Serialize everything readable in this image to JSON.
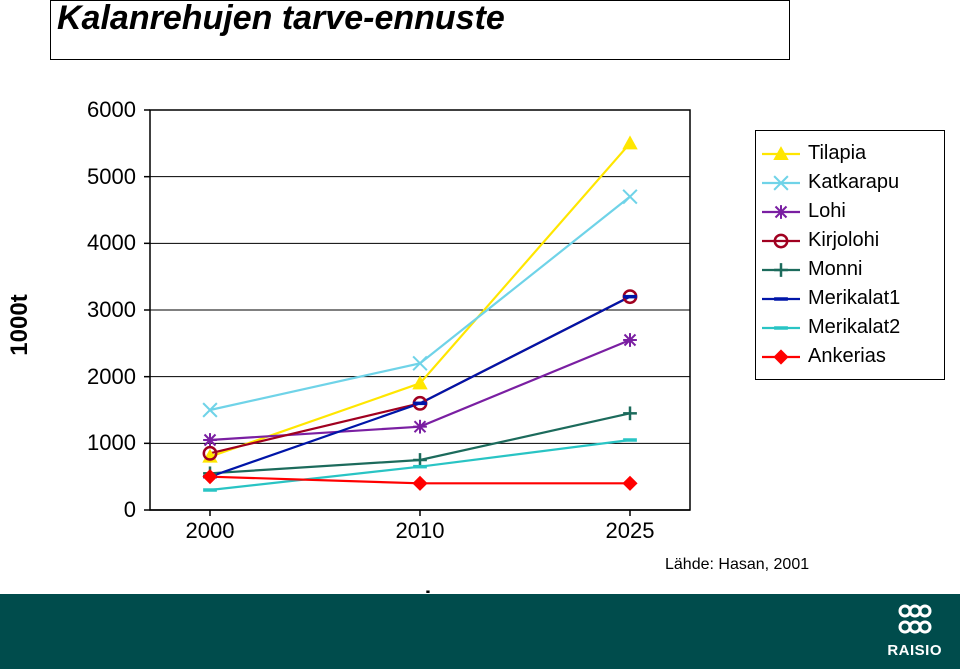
{
  "title": "Kalanrehujen tarve-ennuste",
  "chart": {
    "type": "line",
    "ylabel": "1000t",
    "xlabel": "vuosi",
    "ylim": [
      0,
      6000
    ],
    "ytick_step": 1000,
    "yticks": [
      0,
      1000,
      2000,
      3000,
      4000,
      5000,
      6000
    ],
    "x_categories": [
      "2000",
      "2010",
      "2025"
    ],
    "background_color": "#ffffff",
    "grid_color": "#000000",
    "axis_color": "#000000",
    "tick_fontsize": 22,
    "label_fontsize": 24,
    "series": [
      {
        "name": "Tilapia",
        "color": "#ffe600",
        "marker": "triangle",
        "values": [
          800,
          1900,
          5500
        ]
      },
      {
        "name": "Katkarapu",
        "color": "#6fd3e8",
        "marker": "x",
        "values": [
          1500,
          2200,
          4700
        ]
      },
      {
        "name": "Lohi",
        "color": "#7a1fa2",
        "marker": "star",
        "values": [
          1050,
          1250,
          2550
        ]
      },
      {
        "name": "Kirjolohi",
        "color": "#a00020",
        "marker": "diamond-open",
        "values": [
          850,
          1600,
          3200
        ]
      },
      {
        "name": "Monni",
        "color": "#1c6b5c",
        "marker": "plus",
        "values": [
          550,
          750,
          1450
        ]
      },
      {
        "name": "Merikalat1",
        "color": "#0015a8",
        "marker": "dash",
        "values": [
          500,
          1600,
          3200
        ]
      },
      {
        "name": "Merikalat2",
        "color": "#29c4c4",
        "marker": "dash",
        "values": [
          300,
          650,
          1050
        ]
      },
      {
        "name": "Ankerias",
        "color": "#ff0000",
        "marker": "diamond",
        "values": [
          500,
          400,
          400
        ]
      }
    ],
    "marker_size": 11,
    "line_width": 2.2,
    "legend_border": "#000000"
  },
  "source_label": "Lähde: Hasan, 2001",
  "footer": {
    "background_color": "#004c4c",
    "logo_text": "RAISIO",
    "logo_color": "#ffffff"
  }
}
